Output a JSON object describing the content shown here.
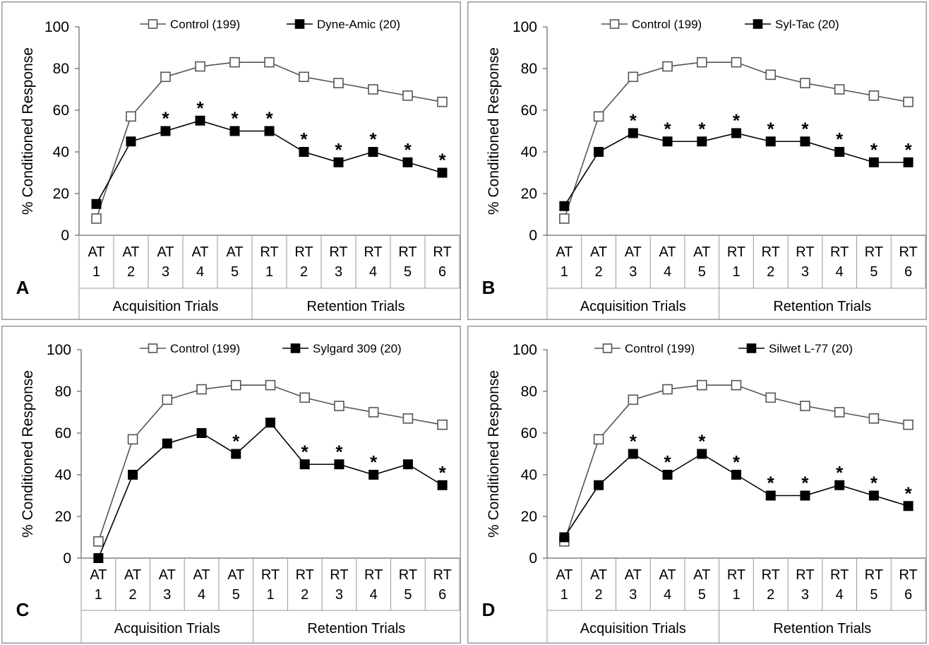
{
  "chart_data": [
    {
      "type": "line",
      "panel": "A",
      "ylabel": "% Conditioned Response",
      "ylim": [
        0,
        100
      ],
      "yticks": [
        "0",
        "20",
        "40",
        "60",
        "80",
        "100"
      ],
      "categories": [
        [
          "AT",
          "1"
        ],
        [
          "AT",
          "2"
        ],
        [
          "AT",
          "3"
        ],
        [
          "AT",
          "4"
        ],
        [
          "AT",
          "5"
        ],
        [
          "RT",
          "1"
        ],
        [
          "RT",
          "2"
        ],
        [
          "RT",
          "3"
        ],
        [
          "RT",
          "4"
        ],
        [
          "RT",
          "5"
        ],
        [
          "RT",
          "6"
        ]
      ],
      "groups": [
        {
          "label": "Acquisition Trials",
          "count": 5
        },
        {
          "label": "Retention Trials",
          "count": 6
        }
      ],
      "legend_position": "top",
      "significance_marker": "*",
      "series": [
        {
          "name": "Control (199)",
          "marker": "open-square",
          "color": "#555555",
          "values": [
            8,
            57,
            76,
            81,
            83,
            83,
            76,
            73,
            70,
            67,
            64
          ]
        },
        {
          "name": "Dyne-Amic (20)",
          "marker": "filled-square",
          "color": "#000000",
          "values": [
            15,
            45,
            50,
            55,
            50,
            50,
            40,
            35,
            40,
            35,
            30
          ],
          "significant": [
            false,
            false,
            true,
            true,
            true,
            true,
            true,
            true,
            true,
            true,
            true
          ]
        }
      ]
    },
    {
      "type": "line",
      "panel": "B",
      "ylabel": "% Conditioned Response",
      "ylim": [
        0,
        100
      ],
      "yticks": [
        "0",
        "20",
        "40",
        "60",
        "80",
        "100"
      ],
      "categories": [
        [
          "AT",
          "1"
        ],
        [
          "AT",
          "2"
        ],
        [
          "AT",
          "3"
        ],
        [
          "AT",
          "4"
        ],
        [
          "AT",
          "5"
        ],
        [
          "RT",
          "1"
        ],
        [
          "RT",
          "2"
        ],
        [
          "RT",
          "3"
        ],
        [
          "RT",
          "4"
        ],
        [
          "RT",
          "5"
        ],
        [
          "RT",
          "6"
        ]
      ],
      "groups": [
        {
          "label": "Acquisition Trials",
          "count": 5
        },
        {
          "label": "Retention Trials",
          "count": 6
        }
      ],
      "legend_position": "top",
      "significance_marker": "*",
      "series": [
        {
          "name": "Control (199)",
          "marker": "open-square",
          "color": "#555555",
          "values": [
            8,
            57,
            76,
            81,
            83,
            83,
            77,
            73,
            70,
            67,
            64
          ]
        },
        {
          "name": "Syl-Tac (20)",
          "marker": "filled-square",
          "color": "#000000",
          "values": [
            14,
            40,
            49,
            45,
            45,
            49,
            45,
            45,
            40,
            35,
            35
          ],
          "significant": [
            false,
            false,
            true,
            true,
            true,
            true,
            true,
            true,
            true,
            true,
            true
          ]
        }
      ]
    },
    {
      "type": "line",
      "panel": "C",
      "ylabel": "% Conditioned Response",
      "ylim": [
        0,
        100
      ],
      "yticks": [
        "0",
        "20",
        "40",
        "60",
        "80",
        "100"
      ],
      "categories": [
        [
          "AT",
          "1"
        ],
        [
          "AT",
          "2"
        ],
        [
          "AT",
          "3"
        ],
        [
          "AT",
          "4"
        ],
        [
          "AT",
          "5"
        ],
        [
          "RT",
          "1"
        ],
        [
          "RT",
          "2"
        ],
        [
          "RT",
          "3"
        ],
        [
          "RT",
          "4"
        ],
        [
          "RT",
          "5"
        ],
        [
          "RT",
          "6"
        ]
      ],
      "groups": [
        {
          "label": "Acquisition Trials",
          "count": 5
        },
        {
          "label": "Retention Trials",
          "count": 6
        }
      ],
      "legend_position": "top",
      "significance_marker": "*",
      "series": [
        {
          "name": "Control (199)",
          "marker": "open-square",
          "color": "#555555",
          "values": [
            8,
            57,
            76,
            81,
            83,
            83,
            77,
            73,
            70,
            67,
            64
          ]
        },
        {
          "name": "Sylgard 309 (20)",
          "marker": "filled-square",
          "color": "#000000",
          "values": [
            0,
            40,
            55,
            60,
            50,
            65,
            45,
            45,
            40,
            45,
            35
          ],
          "significant": [
            false,
            false,
            false,
            false,
            true,
            false,
            true,
            true,
            true,
            false,
            true
          ]
        }
      ]
    },
    {
      "type": "line",
      "panel": "D",
      "ylabel": "% Conditioned Response",
      "ylim": [
        0,
        100
      ],
      "yticks": [
        "0",
        "20",
        "40",
        "60",
        "80",
        "100"
      ],
      "categories": [
        [
          "AT",
          "1"
        ],
        [
          "AT",
          "2"
        ],
        [
          "AT",
          "3"
        ],
        [
          "AT",
          "4"
        ],
        [
          "AT",
          "5"
        ],
        [
          "RT",
          "1"
        ],
        [
          "RT",
          "2"
        ],
        [
          "RT",
          "3"
        ],
        [
          "RT",
          "4"
        ],
        [
          "RT",
          "5"
        ],
        [
          "RT",
          "6"
        ]
      ],
      "groups": [
        {
          "label": "Acquisition Trials",
          "count": 5
        },
        {
          "label": "Retention Trials",
          "count": 6
        }
      ],
      "legend_position": "top",
      "significance_marker": "*",
      "series": [
        {
          "name": "Control (199)",
          "marker": "open-square",
          "color": "#555555",
          "values": [
            8,
            57,
            76,
            81,
            83,
            83,
            77,
            73,
            70,
            67,
            64
          ]
        },
        {
          "name": "Silwet L-77 (20)",
          "marker": "filled-square",
          "color": "#000000",
          "values": [
            10,
            35,
            50,
            40,
            50,
            40,
            30,
            30,
            35,
            30,
            25
          ],
          "significant": [
            false,
            false,
            true,
            true,
            true,
            true,
            true,
            true,
            true,
            true,
            true
          ]
        }
      ]
    }
  ]
}
